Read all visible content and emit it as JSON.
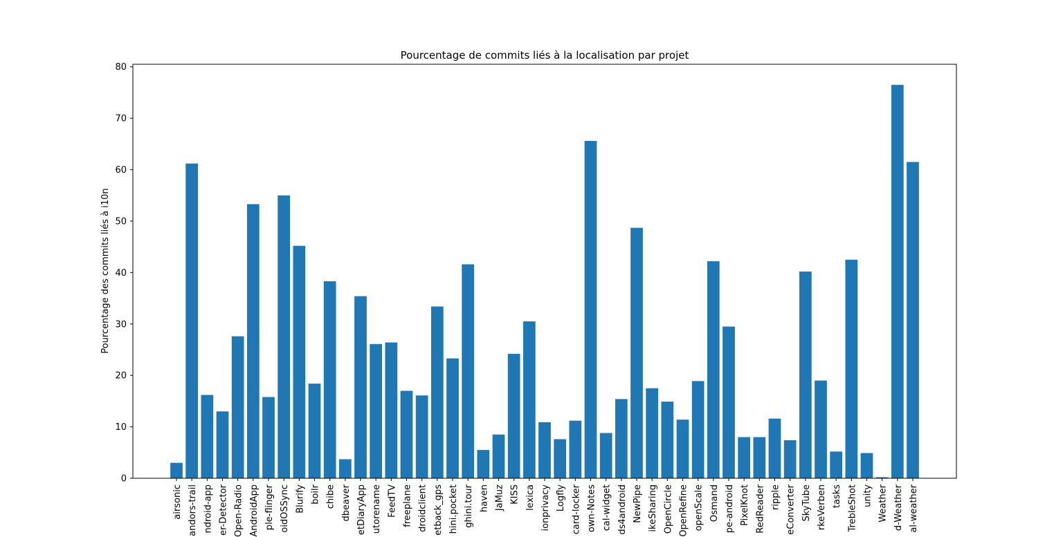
{
  "chart_data": {
    "type": "bar",
    "title": "Pourcentage de commits liés à la localisation par projet",
    "xlabel": "",
    "ylabel": "Pourcentage des commits liés à i10n",
    "ylim": [
      0,
      80.5
    ],
    "yticks": [
      0,
      10,
      20,
      30,
      40,
      50,
      60,
      70,
      80
    ],
    "grid": false,
    "bar_color": "#1f77b4",
    "categories": [
      "airsonic",
      "andors-trail",
      "ndroid-app",
      "er-Detector",
      "Open-Radio",
      "AndroidApp",
      "ple-flinger",
      "oidOSSync",
      "Blurify",
      "boilr",
      "chibe",
      "dbeaver",
      "etDiaryApp",
      "utorename",
      "FeedTV",
      "freeplane",
      "droidclient",
      "etback_gps",
      "hini.pocket",
      "ghini.tour",
      "haven",
      "JaMuz",
      "KISS",
      "lexica",
      "ionprivacy",
      "Logfly",
      "card-locker",
      "own-Notes",
      "cal-widget",
      "ds4android",
      "NewPipe",
      "ikeSharing",
      "OpenCircle",
      "OpenRefine",
      "openScale",
      "Osmand",
      "pe-android",
      "PixelKnot",
      "RedReader",
      "ripple",
      "eConverter",
      "SkyTube",
      "rkeVerben",
      "tasks",
      "TrebleShot",
      "unity",
      "Weather",
      "d-Weather",
      "al-weather"
    ],
    "values": [
      3.0,
      61.2,
      16.2,
      13.0,
      27.6,
      53.3,
      15.8,
      55.0,
      45.2,
      18.4,
      38.3,
      3.7,
      35.4,
      26.1,
      26.4,
      17.0,
      16.1,
      33.4,
      23.3,
      41.6,
      5.5,
      8.5,
      24.2,
      30.5,
      10.9,
      7.6,
      11.2,
      65.6,
      8.8,
      15.4,
      48.7,
      17.5,
      14.9,
      11.4,
      18.9,
      42.2,
      29.5,
      8.0,
      8.0,
      11.6,
      7.4,
      40.2,
      19.0,
      5.2,
      42.5,
      4.9,
      0.2,
      76.5,
      61.5
    ]
  }
}
